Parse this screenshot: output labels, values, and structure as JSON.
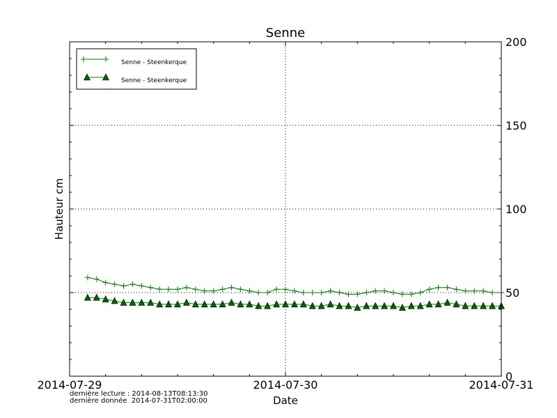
{
  "chart_data": {
    "type": "line",
    "title": "Senne",
    "xlabel": "Date",
    "ylabel": "Hauteur cm",
    "ylim": [
      0,
      200
    ],
    "xlim": [
      "2014-07-29T00:00",
      "2014-07-31T00:00"
    ],
    "x_ticks": [
      "2014-07-29",
      "2014-07-30",
      "2014-07-31"
    ],
    "y_ticks": [
      "0",
      "50",
      "100",
      "150",
      "200"
    ],
    "y_axis_side": "right",
    "grid": true,
    "legend_position": "top-left",
    "x": [
      "2014-07-29T02:00",
      "2014-07-29T03:00",
      "2014-07-29T04:00",
      "2014-07-29T05:00",
      "2014-07-29T06:00",
      "2014-07-29T07:00",
      "2014-07-29T08:00",
      "2014-07-29T09:00",
      "2014-07-29T10:00",
      "2014-07-29T11:00",
      "2014-07-29T12:00",
      "2014-07-29T13:00",
      "2014-07-29T14:00",
      "2014-07-29T15:00",
      "2014-07-29T16:00",
      "2014-07-29T17:00",
      "2014-07-29T18:00",
      "2014-07-29T19:00",
      "2014-07-29T20:00",
      "2014-07-29T21:00",
      "2014-07-29T22:00",
      "2014-07-29T23:00",
      "2014-07-30T00:00",
      "2014-07-30T01:00",
      "2014-07-30T02:00",
      "2014-07-30T03:00",
      "2014-07-30T04:00",
      "2014-07-30T05:00",
      "2014-07-30T06:00",
      "2014-07-30T07:00",
      "2014-07-30T08:00",
      "2014-07-30T09:00",
      "2014-07-30T10:00",
      "2014-07-30T11:00",
      "2014-07-30T12:00",
      "2014-07-30T13:00",
      "2014-07-30T14:00",
      "2014-07-30T15:00",
      "2014-07-30T16:00",
      "2014-07-30T17:00",
      "2014-07-30T18:00",
      "2014-07-30T19:00",
      "2014-07-30T20:00",
      "2014-07-30T21:00",
      "2014-07-30T22:00",
      "2014-07-30T23:00",
      "2014-07-31T00:00"
    ],
    "series": [
      {
        "name": "Senne - Steenkerque",
        "marker": "plus",
        "color": "#008000",
        "values": [
          59,
          58,
          56,
          55,
          54,
          55,
          54,
          53,
          52,
          52,
          52,
          53,
          52,
          51,
          51,
          52,
          53,
          52,
          51,
          50,
          50,
          52,
          52,
          51,
          50,
          50,
          50,
          51,
          50,
          49,
          49,
          50,
          51,
          51,
          50,
          49,
          49,
          50,
          52,
          53,
          53,
          52,
          51,
          51,
          51,
          50,
          50
        ]
      },
      {
        "name": "Senne - Steenkerque",
        "marker": "triangle",
        "color": "#008000",
        "marker_fill": "#006400",
        "values": [
          47,
          47,
          46,
          45,
          44,
          44,
          44,
          44,
          43,
          43,
          43,
          44,
          43,
          43,
          43,
          43,
          44,
          43,
          43,
          42,
          42,
          43,
          43,
          43,
          43,
          42,
          42,
          43,
          42,
          42,
          41,
          42,
          42,
          42,
          42,
          41,
          42,
          42,
          43,
          43,
          44,
          43,
          42,
          42,
          42,
          42,
          42
        ]
      }
    ]
  },
  "footer": {
    "last_read": "dernière lecture : 2014-08-13T08:13:30",
    "last_data": "dernière donnée  2014-07-31T02:00:00"
  }
}
